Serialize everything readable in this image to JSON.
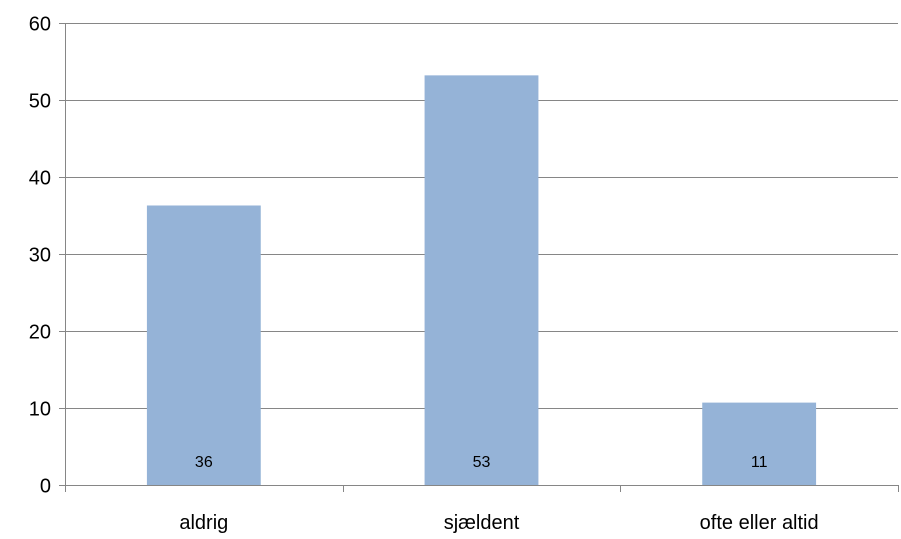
{
  "chart_data": {
    "type": "bar",
    "categories": [
      "aldrig",
      "sjældent",
      "ofte eller altid"
    ],
    "values": [
      36.3,
      53.2,
      10.7
    ],
    "data_labels": [
      "36",
      "53",
      "11"
    ],
    "ylim": [
      0,
      60
    ],
    "yticks": [
      "0",
      "10",
      "20",
      "30",
      "40",
      "50",
      "60"
    ],
    "grid": true,
    "legend": "none",
    "title": "",
    "xlabel": "",
    "ylabel": "",
    "colors": {
      "bar": "#95B3D7",
      "grid": "#868686",
      "axis": "#868686"
    }
  }
}
